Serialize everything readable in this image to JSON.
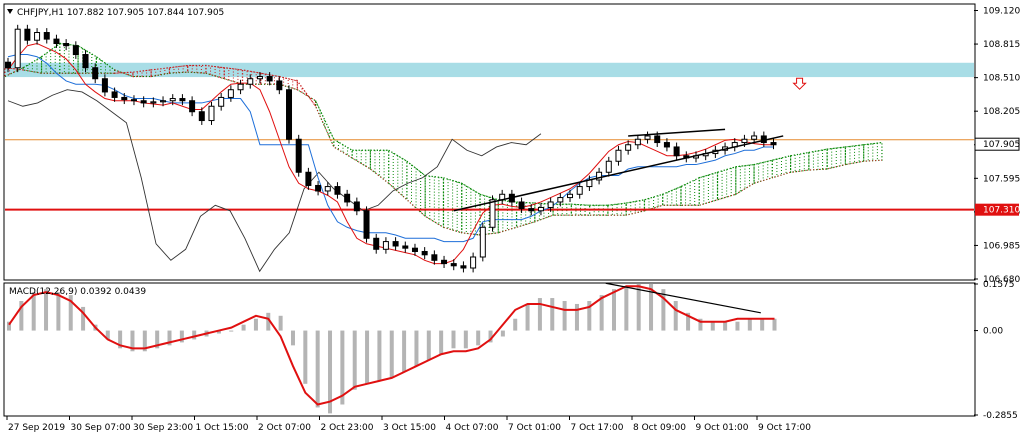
{
  "chart_data": [
    {
      "type": "candlestick",
      "panel": "price",
      "symbol_header": "CHFJPY,H1  107.882 107.905 107.844 107.905",
      "ylim": [
        106.68,
        109.17
      ],
      "y_ticks": [
        "109.120",
        "108.815",
        "108.510",
        "108.205",
        "107.900",
        "107.595",
        "107.290",
        "106.985",
        "106.680"
      ],
      "current_price_label": "107.905",
      "hline_label": "107.310",
      "hline_value": 107.31,
      "hline_color": "#e01010",
      "orange_line_value": 107.945,
      "resistance_zone": [
        108.515,
        108.645
      ],
      "sell_arrow_near": 108.45,
      "close_series": [
        108.6,
        108.95,
        108.85,
        108.92,
        108.86,
        108.82,
        108.8,
        108.72,
        108.6,
        108.5,
        108.38,
        108.33,
        108.31,
        108.3,
        108.28,
        108.29,
        108.3,
        108.32,
        108.3,
        108.2,
        108.12,
        108.25,
        108.33,
        108.4,
        108.45,
        108.5,
        108.52,
        108.48,
        108.4,
        107.95,
        107.65,
        107.53,
        107.48,
        107.52,
        107.45,
        107.38,
        107.3,
        107.05,
        106.95,
        107.02,
        106.98,
        106.96,
        106.93,
        106.9,
        106.85,
        106.82,
        106.8,
        106.78,
        106.88,
        107.15,
        107.4,
        107.45,
        107.38,
        107.32,
        107.3,
        107.33,
        107.38,
        107.42,
        107.45,
        107.52,
        107.58,
        107.65,
        107.75,
        107.85,
        107.9,
        107.95,
        107.98,
        107.92,
        107.88,
        107.8,
        107.78,
        107.8,
        107.82,
        107.85,
        107.88,
        107.92,
        107.95,
        107.98,
        107.92,
        107.9
      ],
      "tenkan_series": [
        108.58,
        108.7,
        108.8,
        108.82,
        108.78,
        108.74,
        108.68,
        108.58,
        108.45,
        108.38,
        108.32,
        108.3,
        108.3,
        108.3,
        108.28,
        108.27,
        108.26,
        108.28,
        108.25,
        108.22,
        108.22,
        108.3,
        108.38,
        108.45,
        108.46,
        108.46,
        108.4,
        108.2,
        107.95,
        107.7,
        107.55,
        107.5,
        107.48,
        107.44,
        107.38,
        107.2,
        107.05,
        107.0,
        106.98,
        106.96,
        106.94,
        106.92,
        106.9,
        106.85,
        106.82,
        106.82,
        106.85,
        106.95,
        107.12,
        107.28,
        107.35,
        107.36,
        107.34,
        107.33,
        107.35,
        107.38,
        107.42,
        107.46,
        107.5,
        107.56,
        107.64,
        107.74,
        107.84,
        107.9,
        107.93,
        107.92,
        107.88,
        107.84,
        107.8,
        107.8,
        107.81,
        107.83,
        107.86,
        107.9,
        107.94,
        107.95,
        107.93,
        107.91,
        107.9,
        107.9
      ],
      "kijun_series": [
        108.7,
        108.72,
        108.72,
        108.7,
        108.64,
        108.55,
        108.48,
        108.45,
        108.45,
        108.45,
        108.44,
        108.4,
        108.35,
        108.32,
        108.32,
        108.32,
        108.3,
        108.28,
        108.28,
        108.28,
        108.28,
        108.3,
        108.32,
        108.32,
        108.32,
        108.2,
        107.9,
        107.9,
        107.9,
        107.9,
        107.9,
        107.9,
        107.6,
        107.35,
        107.2,
        107.15,
        107.12,
        107.1,
        107.1,
        107.1,
        107.08,
        107.05,
        107.05,
        107.05,
        107.05,
        107.02,
        107.02,
        107.02,
        107.05,
        107.2,
        107.22,
        107.22,
        107.22,
        107.22,
        107.25,
        107.3,
        107.33,
        107.4,
        107.48,
        107.55,
        107.6,
        107.62,
        107.62,
        107.62,
        107.68,
        107.7,
        107.7,
        107.7,
        107.7,
        107.7,
        107.72,
        107.72,
        107.74,
        107.76,
        107.8,
        107.82,
        107.85,
        107.85,
        107.88,
        107.88
      ],
      "chikou_series": [
        108.3,
        108.25,
        108.28,
        108.35,
        108.4,
        108.38,
        108.3,
        108.2,
        108.1,
        107.6,
        107.0,
        106.85,
        106.95,
        107.25,
        107.35,
        107.3,
        107.05,
        106.75,
        106.95,
        107.1,
        107.5,
        107.65,
        107.5,
        107.4,
        107.3,
        107.35,
        107.48,
        107.55,
        107.6,
        107.7,
        107.95,
        107.85,
        107.8,
        107.88,
        107.92,
        107.9,
        108.0
      ],
      "cloud_a_series": [
        108.52,
        108.6,
        108.7,
        108.82,
        108.8,
        108.7,
        108.58,
        108.52,
        108.52,
        108.55,
        108.56,
        108.55,
        108.5,
        108.45,
        108.45,
        108.45,
        108.4,
        108.3,
        107.95,
        107.85,
        107.85,
        107.85,
        107.75,
        107.62,
        107.6,
        107.55,
        107.45,
        107.4,
        107.38,
        107.37,
        107.36,
        107.36,
        107.35,
        107.35,
        107.37,
        107.4,
        107.45,
        107.52,
        107.6,
        107.65,
        107.7,
        107.72,
        107.76,
        107.8,
        107.83,
        107.86,
        107.88,
        107.9,
        107.92
      ],
      "cloud_b_series": [
        108.6,
        108.58,
        108.55,
        108.55,
        108.55,
        108.55,
        108.55,
        108.56,
        108.58,
        108.6,
        108.62,
        108.62,
        108.6,
        108.58,
        108.55,
        108.52,
        108.48,
        108.25,
        107.88,
        107.78,
        107.68,
        107.55,
        107.4,
        107.25,
        107.15,
        107.1,
        107.08,
        107.1,
        107.15,
        107.2,
        107.26,
        107.26,
        107.26,
        107.26,
        107.26,
        107.3,
        107.35,
        107.35,
        107.35,
        107.4,
        107.45,
        107.55,
        107.6,
        107.65,
        107.67,
        107.68,
        107.72,
        107.75,
        107.76
      ],
      "trendlines": [
        {
          "from": [
            46,
            107.3
          ],
          "to": [
            80,
            107.98
          ]
        },
        {
          "from": [
            64,
            107.98
          ],
          "to": [
            74,
            108.04
          ]
        }
      ]
    },
    {
      "type": "histogram+line",
      "panel": "indicator",
      "name": "MACD(12,26,9) 0.0392 0.0439",
      "ylim": [
        -0.2855,
        0.1575
      ],
      "y_ticks": [
        "0.1575",
        "0.00",
        "-0.2855"
      ],
      "histogram": [
        0.03,
        0.1,
        0.13,
        0.14,
        0.13,
        0.12,
        0.08,
        0.02,
        -0.03,
        -0.06,
        -0.07,
        -0.07,
        -0.06,
        -0.05,
        -0.04,
        -0.03,
        -0.02,
        -0.01,
        0.0,
        0.02,
        0.04,
        0.06,
        0.05,
        -0.05,
        -0.18,
        -0.26,
        -0.28,
        -0.25,
        -0.2,
        -0.18,
        -0.17,
        -0.16,
        -0.14,
        -0.12,
        -0.1,
        -0.08,
        -0.06,
        -0.06,
        -0.05,
        -0.04,
        -0.02,
        0.04,
        0.09,
        0.11,
        0.11,
        0.1,
        0.09,
        0.1,
        0.12,
        0.14,
        0.15,
        0.16,
        0.16,
        0.14,
        0.1,
        0.06,
        0.04,
        0.03,
        0.03,
        0.03,
        0.04,
        0.04,
        0.04
      ],
      "signal": [
        0.02,
        0.08,
        0.12,
        0.13,
        0.12,
        0.1,
        0.06,
        0.01,
        -0.03,
        -0.05,
        -0.06,
        -0.06,
        -0.05,
        -0.04,
        -0.03,
        -0.02,
        -0.01,
        0.0,
        0.01,
        0.03,
        0.05,
        0.04,
        -0.02,
        -0.12,
        -0.21,
        -0.25,
        -0.24,
        -0.22,
        -0.19,
        -0.18,
        -0.17,
        -0.16,
        -0.14,
        -0.12,
        -0.1,
        -0.08,
        -0.07,
        -0.07,
        -0.06,
        -0.03,
        0.02,
        0.07,
        0.09,
        0.09,
        0.08,
        0.07,
        0.07,
        0.08,
        0.11,
        0.13,
        0.15,
        0.15,
        0.14,
        0.11,
        0.07,
        0.05,
        0.03,
        0.03,
        0.03,
        0.04,
        0.04,
        0.04,
        0.04
      ],
      "trendline": {
        "from": [
          0.62,
          0.16
        ],
        "to": [
          0.78,
          0.06
        ]
      }
    }
  ],
  "x_tick_labels": [
    "27 Sep 2019",
    "30 Sep 07:00",
    "30 Sep 23:00",
    "1 Oct 15:00",
    "2 Oct 07:00",
    "2 Oct 23:00",
    "3 Oct 15:00",
    "4 Oct 07:00",
    "7 Oct 01:00",
    "7 Oct 17:00",
    "8 Oct 09:00",
    "9 Oct 01:00",
    "9 Oct 17:00"
  ],
  "colors": {
    "tenkan": "#e01010",
    "kijun": "#1e6fd9",
    "chikou": "#333333",
    "cloud_up": "#0a8a0a",
    "cloud_down": "#c81e1e",
    "zone": "#a8dde6",
    "hline": "#e01010",
    "orange": "#e58a2e",
    "macd_hist": "#b4b4b4",
    "macd_signal": "#e01010"
  }
}
